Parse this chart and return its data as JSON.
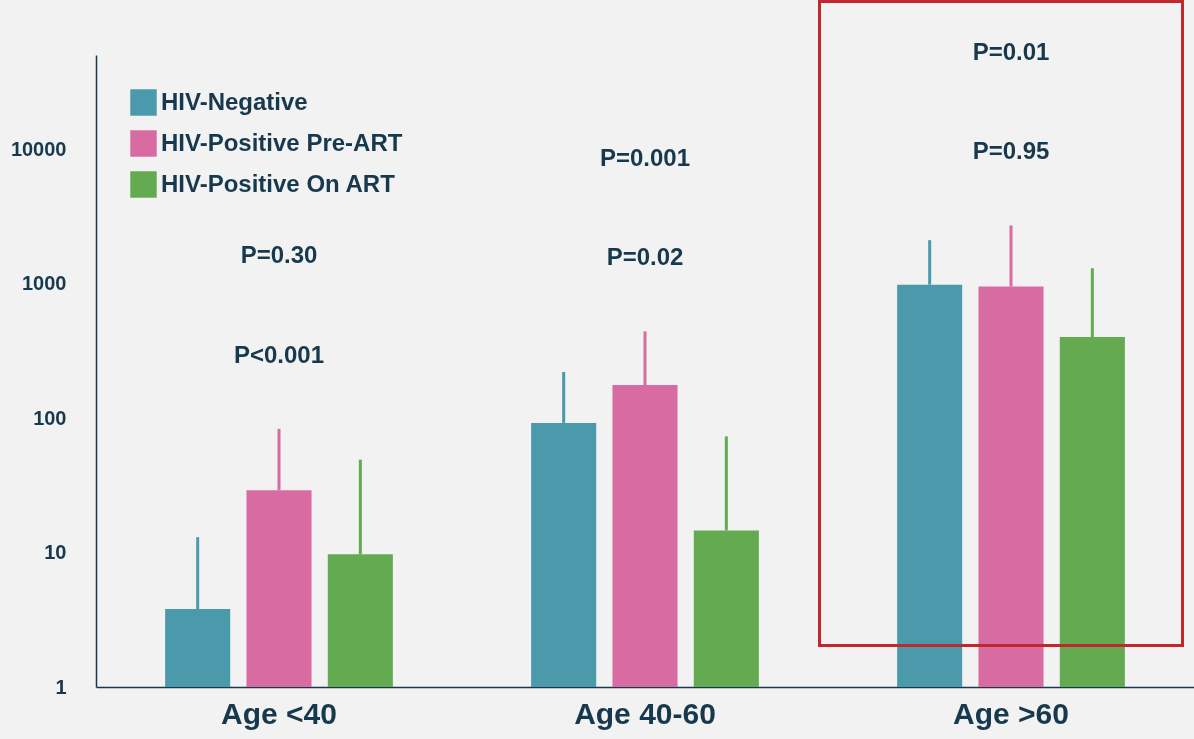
{
  "chart_data": {
    "type": "bar",
    "categories": [
      "Age <40",
      "Age 40-60",
      "Age >60"
    ],
    "series": [
      {
        "name": "HIV-Negative",
        "color": "#4a9aab",
        "values": [
          3.8,
          92,
          980
        ],
        "errors": [
          [
            3.8,
            13
          ],
          [
            92,
            220
          ],
          [
            980,
            2100
          ]
        ]
      },
      {
        "name": "HIV-Positive Pre-ART",
        "color": "#d76ba2",
        "values": [
          29,
          176,
          950
        ],
        "errors": [
          [
            29,
            83
          ],
          [
            176,
            440
          ],
          [
            950,
            2700
          ]
        ]
      },
      {
        "name": "HIV-Positive On ART",
        "color": "#63aa50",
        "values": [
          9.7,
          14.6,
          400
        ],
        "errors": [
          [
            9.7,
            49
          ],
          [
            14.6,
            73
          ],
          [
            400,
            1300
          ]
        ]
      }
    ],
    "log": true,
    "ylim": [
      1,
      50000
    ],
    "yticks": [
      1,
      10,
      100,
      1000,
      10000
    ],
    "legend": "top left",
    "annotations": [
      "P<0.001",
      "P=0.30",
      "P=0.02",
      "P=0.001",
      "P=0.95",
      "P=0.01"
    ]
  }
}
